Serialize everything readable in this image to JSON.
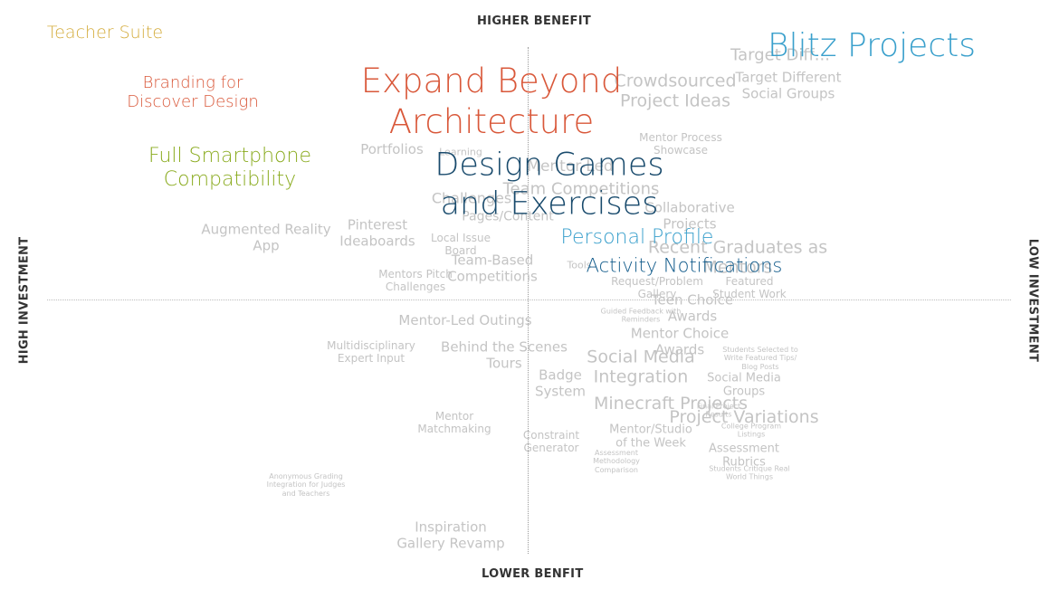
{
  "axes": {
    "top": "HIGHER BENEFIT",
    "bottom": "LOWER BENFIT",
    "left": "HIGH INVESTMENT",
    "right": "LOW INVESTMENT"
  },
  "colors": {
    "faint": "#c4c4c4",
    "gold": "#d4ac3c",
    "orange": "#d9583a",
    "green": "#8aab1f",
    "navy": "#184a6c",
    "blue": "#3aa0cc",
    "darkblue": "#105a8a"
  },
  "items": [
    {
      "id": "teacher-suite",
      "lines": [
        "Teacher Suite"
      ],
      "color": "gold"
    },
    {
      "id": "branding-discover-design",
      "lines": [
        "Branding for",
        "Discover Design"
      ],
      "color": "orange"
    },
    {
      "id": "full-smartphone-compatibility",
      "lines": [
        "Full Smartphone",
        "Compatibility"
      ],
      "color": "green"
    },
    {
      "id": "expand-beyond-architecture",
      "lines": [
        "Expand Beyond",
        "Architecture"
      ],
      "color": "orange"
    },
    {
      "id": "design-games-exercises",
      "lines": [
        "Design Games",
        "and Exercises"
      ],
      "color": "navy"
    },
    {
      "id": "blitz-projects",
      "lines": [
        "Blitz Projects"
      ],
      "color": "blue"
    },
    {
      "id": "personal-profile",
      "lines": [
        "Personal Profile"
      ],
      "color": "blue"
    },
    {
      "id": "activity-notifications",
      "lines": [
        "Activity Notifications"
      ],
      "color": "darkblue"
    },
    {
      "id": "crowdsourced-project-ideas",
      "lines": [
        "Crowdsourced",
        "Project Ideas"
      ],
      "color": "faint"
    },
    {
      "id": "target-diff",
      "lines": [
        "Target Diff..."
      ],
      "color": "faint"
    },
    {
      "id": "target-different-social-groups",
      "lines": [
        "Target Different",
        "Social Groups"
      ],
      "color": "faint"
    },
    {
      "id": "mentor-process-showcase",
      "lines": [
        "Mentor Process",
        "Showcase"
      ],
      "color": "faint"
    },
    {
      "id": "portfolios",
      "lines": [
        "Portfolios"
      ],
      "color": "faint"
    },
    {
      "id": "learning",
      "lines": [
        "Learning"
      ],
      "color": "faint"
    },
    {
      "id": "mentor-led",
      "lines": [
        "Mentor-Led"
      ],
      "color": "faint"
    },
    {
      "id": "team-competitions",
      "lines": [
        "Team Competitions"
      ],
      "color": "faint"
    },
    {
      "id": "challenges-small",
      "lines": [
        "Challenges"
      ],
      "color": "faint"
    },
    {
      "id": "collaborative-projects",
      "lines": [
        "Collaborative",
        "Projects"
      ],
      "color": "faint"
    },
    {
      "id": "pages-content",
      "lines": [
        "Pages/Content"
      ],
      "color": "faint"
    },
    {
      "id": "augmented-reality-app",
      "lines": [
        "Augmented Reality",
        "App"
      ],
      "color": "faint"
    },
    {
      "id": "pinterest-ideaboards",
      "lines": [
        "Pinterest",
        "Ideaboards"
      ],
      "color": "faint"
    },
    {
      "id": "local-issue-board",
      "lines": [
        "Local Issue",
        "Board"
      ],
      "color": "faint"
    },
    {
      "id": "team-based-competitions",
      "lines": [
        "Team-Based",
        "Competitions"
      ],
      "color": "faint"
    },
    {
      "id": "recent-graduates-mentors",
      "lines": [
        "Recent Graduates as",
        "Mentors"
      ],
      "color": "faint"
    },
    {
      "id": "tools",
      "lines": [
        "Tools"
      ],
      "color": "faint"
    },
    {
      "id": "mentors-pitch-challenges",
      "lines": [
        "Mentors Pitch",
        "Challenges"
      ],
      "color": "faint"
    },
    {
      "id": "request-problem-gallery",
      "lines": [
        "Request/Problem",
        "Gallery"
      ],
      "color": "faint"
    },
    {
      "id": "featured-student-work",
      "lines": [
        "Featured",
        "Student Work"
      ],
      "color": "faint"
    },
    {
      "id": "teen-choice-awards",
      "lines": [
        "Teen Choice",
        "Awards"
      ],
      "color": "faint"
    },
    {
      "id": "guided-feedback-reminders",
      "lines": [
        "Guided Feedback with",
        "Reminders"
      ],
      "color": "faint"
    },
    {
      "id": "mentor-led-outings",
      "lines": [
        "Mentor-Led Outings"
      ],
      "color": "faint"
    },
    {
      "id": "mentor-choice-awards",
      "lines": [
        "Mentor Choice",
        "Awards"
      ],
      "color": "faint"
    },
    {
      "id": "multidisciplinary-expert-input",
      "lines": [
        "Multidisciplinary",
        "Expert Input"
      ],
      "color": "faint"
    },
    {
      "id": "behind-the-scenes-tours",
      "lines": [
        "Behind the Scenes",
        "Tours"
      ],
      "color": "faint"
    },
    {
      "id": "social-media-integration",
      "lines": [
        "Social Media",
        "Integration"
      ],
      "color": "faint"
    },
    {
      "id": "students-selected-tips",
      "lines": [
        "Students Selected to",
        "Write Featured Tips/",
        "Blog Posts"
      ],
      "color": "faint"
    },
    {
      "id": "badge-system",
      "lines": [
        "Badge",
        "System"
      ],
      "color": "faint"
    },
    {
      "id": "social-media-groups",
      "lines": [
        "Social Media",
        "Groups"
      ],
      "color": "faint"
    },
    {
      "id": "minecraft-projects",
      "lines": [
        "Minecraft Projects"
      ],
      "color": "faint"
    },
    {
      "id": "final-project-results",
      "lines": [
        "Final Project",
        "Results"
      ],
      "color": "faint"
    },
    {
      "id": "project-variations",
      "lines": [
        "Project Variations"
      ],
      "color": "faint"
    },
    {
      "id": "mentor-matchmaking",
      "lines": [
        "Mentor",
        "Matchmaking"
      ],
      "color": "faint"
    },
    {
      "id": "constraint-generator",
      "lines": [
        "Constraint",
        "Generator"
      ],
      "color": "faint"
    },
    {
      "id": "mentor-studio-week",
      "lines": [
        "Mentor/Studio",
        "of the Week"
      ],
      "color": "faint"
    },
    {
      "id": "college-program-listings",
      "lines": [
        "College Program",
        "Listings"
      ],
      "color": "faint"
    },
    {
      "id": "assessment-methodology-comparison",
      "lines": [
        "Assessment",
        "Methodology",
        "Comparison"
      ],
      "color": "faint"
    },
    {
      "id": "assessment-rubrics",
      "lines": [
        "Assessment",
        "Rubrics"
      ],
      "color": "faint"
    },
    {
      "id": "students-critique-real-world",
      "lines": [
        "Students Critique Real",
        "World Things"
      ],
      "color": "faint"
    },
    {
      "id": "anonymous-grading",
      "lines": [
        "Anonymous Grading",
        "Integration for Judges",
        "and Teachers"
      ],
      "color": "faint"
    },
    {
      "id": "inspiration-gallery-revamp",
      "lines": [
        "Inspiration",
        "Gallery Revamp"
      ],
      "color": "faint"
    }
  ]
}
